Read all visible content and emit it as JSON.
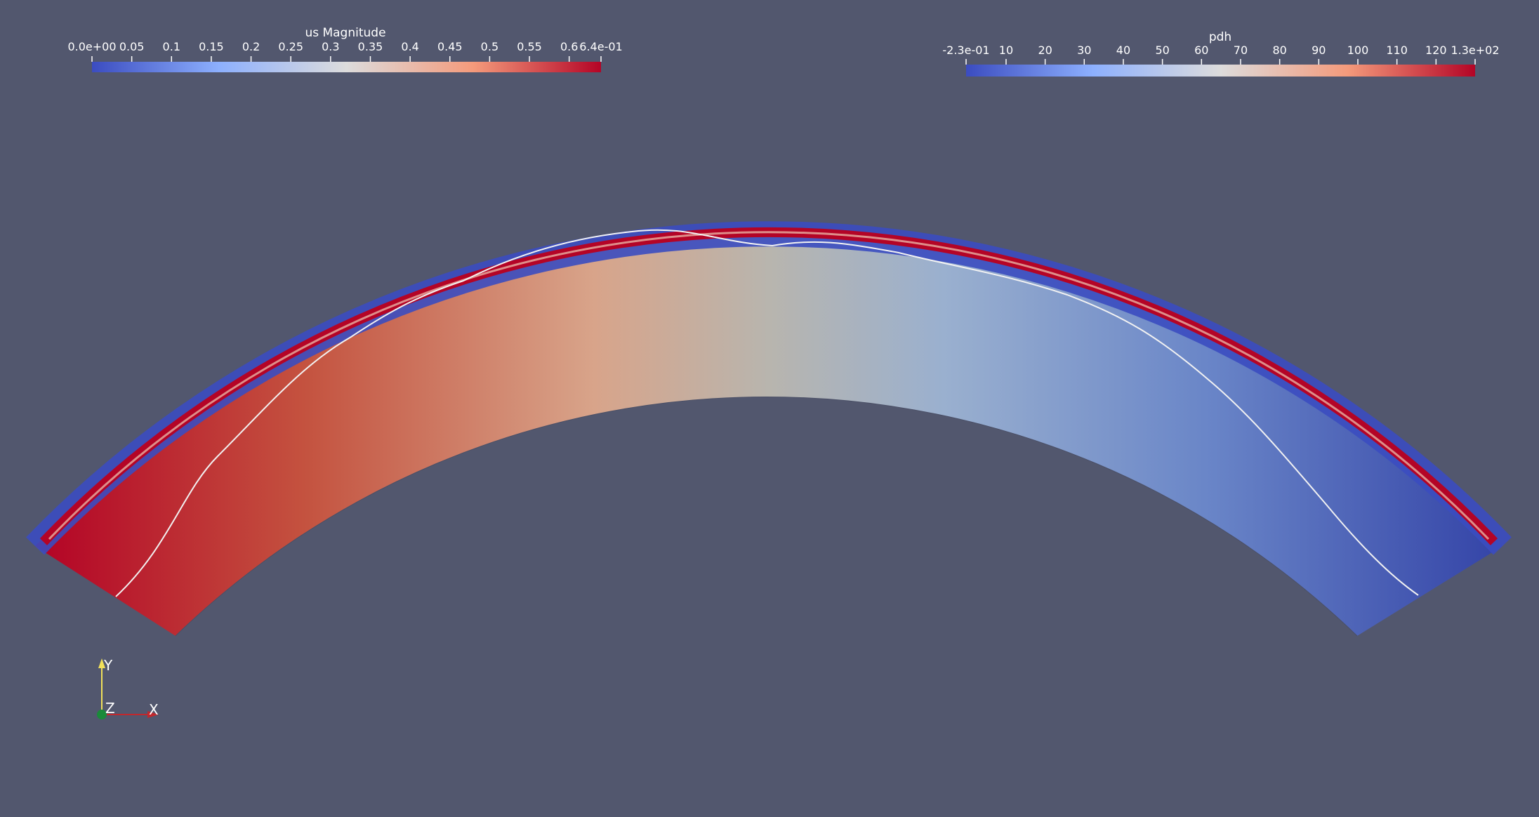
{
  "colors": {
    "background": "#52576e",
    "cool_low": "#3b4cc0",
    "cool_mid": "#8db0fe",
    "neutral": "#dddcdc",
    "warm_mid": "#f49a7b",
    "warm_high": "#b40426",
    "contour": "#f2f2f2"
  },
  "colorbar_us": {
    "title": "us Magnitude",
    "colormap": "coolwarm",
    "range": [
      0.0,
      0.64
    ],
    "ticks": [
      {
        "label": "0.0e+00",
        "value": 0.0
      },
      {
        "label": "0.05",
        "value": 0.05
      },
      {
        "label": "0.1",
        "value": 0.1
      },
      {
        "label": "0.15",
        "value": 0.15
      },
      {
        "label": "0.2",
        "value": 0.2
      },
      {
        "label": "0.25",
        "value": 0.25
      },
      {
        "label": "0.3",
        "value": 0.3
      },
      {
        "label": "0.35",
        "value": 0.35
      },
      {
        "label": "0.4",
        "value": 0.4
      },
      {
        "label": "0.45",
        "value": 0.45
      },
      {
        "label": "0.5",
        "value": 0.5
      },
      {
        "label": "0.55",
        "value": 0.55
      },
      {
        "label": "0.6",
        "value": 0.6
      },
      {
        "label": "6.4e-01",
        "value": 0.64
      }
    ]
  },
  "colorbar_pdh": {
    "title": "pdh",
    "colormap": "coolwarm",
    "range": [
      -0.23,
      130
    ],
    "ticks": [
      {
        "label": "-2.3e-01",
        "value": -0.23
      },
      {
        "label": "10",
        "value": 10
      },
      {
        "label": "20",
        "value": 20
      },
      {
        "label": "30",
        "value": 30
      },
      {
        "label": "40",
        "value": 40
      },
      {
        "label": "50",
        "value": 50
      },
      {
        "label": "60",
        "value": 60
      },
      {
        "label": "70",
        "value": 70
      },
      {
        "label": "80",
        "value": 80
      },
      {
        "label": "90",
        "value": 90
      },
      {
        "label": "100",
        "value": 100
      },
      {
        "label": "110",
        "value": 110
      },
      {
        "label": "120",
        "value": 120
      },
      {
        "label": "1.3e+02",
        "value": 130
      }
    ]
  },
  "axes_triad": {
    "y_label": "Y",
    "z_label": "Z",
    "x_label": "X"
  }
}
